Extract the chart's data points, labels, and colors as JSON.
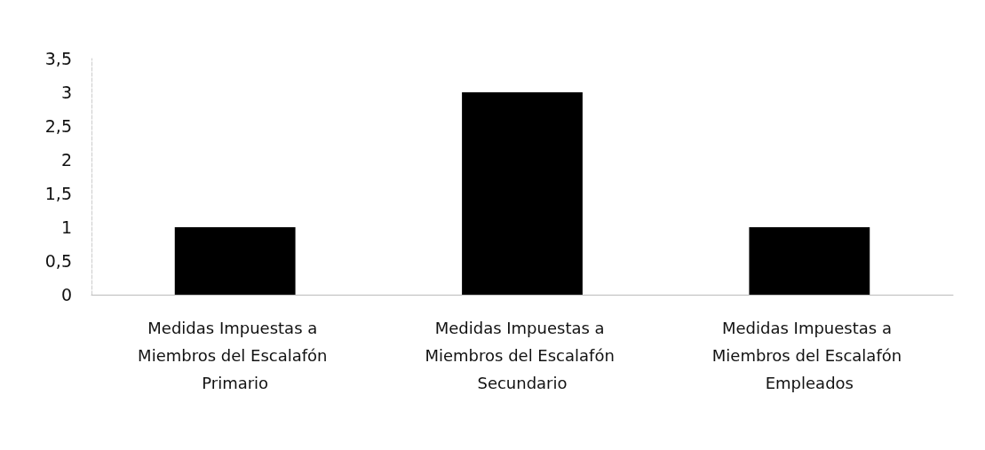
{
  "chart_data": {
    "type": "bar",
    "categories": [
      "Medidas Impuestas a Miembros del Escalafón Primario",
      "Medidas Impuestas a Miembros del Escalafón Secundario",
      "Medidas Impuestas a Miembros del Escalafón Empleados"
    ],
    "values": [
      1,
      3,
      1
    ],
    "color": "#000000",
    "ylim": [
      0,
      3.5
    ],
    "yticks": [
      0,
      {
        "value": 0.5,
        "label": "0,5"
      },
      1,
      {
        "value": 1.5,
        "label": "1,5"
      },
      2,
      {
        "value": 2.5,
        "label": "2,5"
      },
      3,
      {
        "value": 3.5,
        "label": "3,5"
      }
    ],
    "grid": false
  }
}
